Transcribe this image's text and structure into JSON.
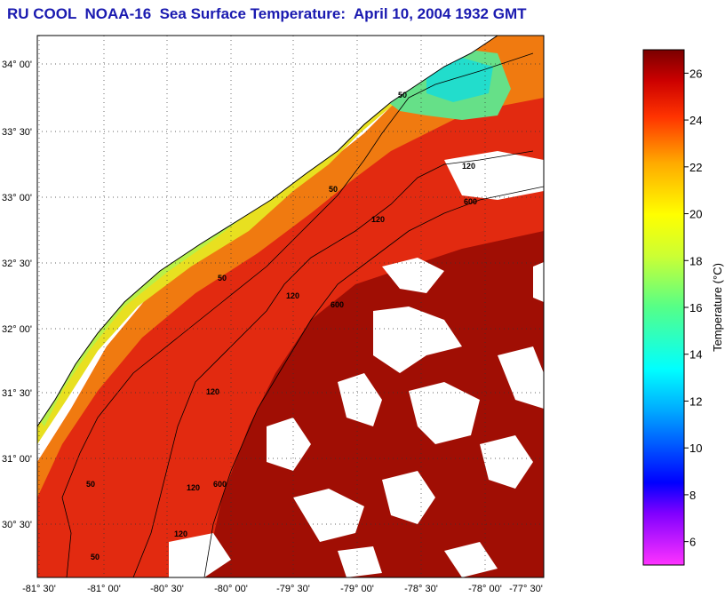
{
  "title": "RU COOL  NOAA-16  Sea Surface Temperature:  April 10, 2004 1932 GMT",
  "map": {
    "lat_ticks": [
      "34° 00'",
      "33° 30'",
      "33° 00'",
      "32° 30'",
      "32° 00'",
      "31° 30'",
      "31° 00'",
      "30° 30'"
    ],
    "lon_ticks": [
      "-81° 30'",
      "-81° 00'",
      "-80° 30'",
      "-80° 00'",
      "-79° 30'",
      "-79° 00'",
      "-78° 30'",
      "-78° 00'",
      "-77° 30'"
    ],
    "isobath_labels": [
      "50",
      "50",
      "50",
      "50",
      "50",
      "120",
      "120",
      "120",
      "120",
      "120",
      "120",
      "600",
      "600",
      "600"
    ]
  },
  "colorbar": {
    "title": "Temperature (°C)",
    "min": 5,
    "max": 27,
    "ticks": [
      "6",
      "8",
      "10",
      "12",
      "14",
      "16",
      "18",
      "20",
      "22",
      "24",
      "26"
    ],
    "colors": [
      "#ff33ff",
      "#8000ff",
      "#0000ff",
      "#00aaff",
      "#00ffff",
      "#55ff88",
      "#ccff33",
      "#ffff00",
      "#ffaa00",
      "#ff3300",
      "#cc0000",
      "#7a0000"
    ]
  }
}
